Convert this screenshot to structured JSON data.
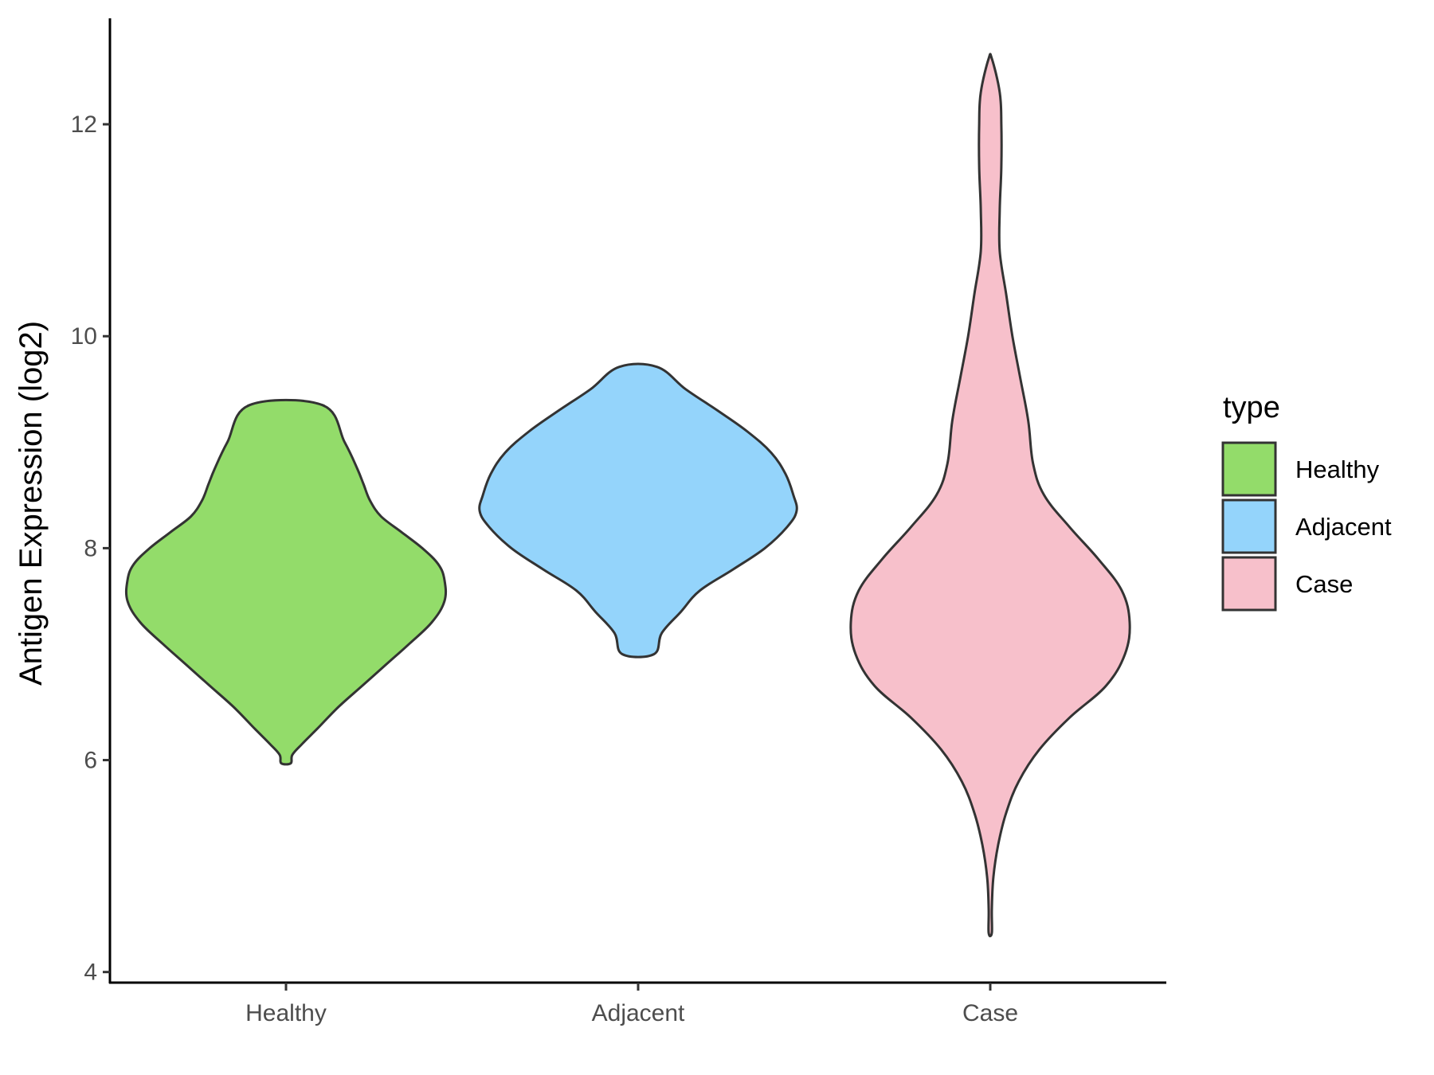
{
  "chart_data": {
    "type": "violin",
    "title": "",
    "xlabel": "",
    "ylabel": "Antigen Expression (log2)",
    "ylim": [
      3.9,
      13.0
    ],
    "yticks": [
      4,
      6,
      8,
      10,
      12
    ],
    "categories": [
      "Healthy",
      "Adjacent",
      "Case"
    ],
    "legend": {
      "title": "type",
      "position": "right",
      "entries": [
        "Healthy",
        "Adjacent",
        "Case"
      ]
    },
    "colors": {
      "Healthy": "#93DC6A",
      "Adjacent": "#94D4FB",
      "Case": "#F7C0CB",
      "outline": "#333333"
    },
    "series": [
      {
        "name": "Healthy",
        "min": 5.97,
        "max": 9.35,
        "profile": [
          [
            9.35,
            0.23
          ],
          [
            9.0,
            0.37
          ],
          [
            8.75,
            0.45
          ],
          [
            8.6,
            0.49
          ],
          [
            8.45,
            0.53
          ],
          [
            8.3,
            0.6
          ],
          [
            8.15,
            0.73
          ],
          [
            8.0,
            0.86
          ],
          [
            7.85,
            0.96
          ],
          [
            7.7,
            1.0
          ],
          [
            7.5,
            1.0
          ],
          [
            7.3,
            0.92
          ],
          [
            7.1,
            0.78
          ],
          [
            6.9,
            0.63
          ],
          [
            6.7,
            0.48
          ],
          [
            6.5,
            0.33
          ],
          [
            6.3,
            0.2
          ],
          [
            6.15,
            0.1
          ],
          [
            6.05,
            0.04
          ],
          [
            5.97,
            0.03
          ]
        ]
      },
      {
        "name": "Adjacent",
        "min": 7.0,
        "max": 9.71,
        "profile": [
          [
            9.71,
            0.12
          ],
          [
            9.5,
            0.3
          ],
          [
            9.3,
            0.5
          ],
          [
            9.1,
            0.69
          ],
          [
            8.9,
            0.84
          ],
          [
            8.7,
            0.93
          ],
          [
            8.5,
            0.98
          ],
          [
            8.35,
            1.0
          ],
          [
            8.2,
            0.94
          ],
          [
            8.0,
            0.8
          ],
          [
            7.8,
            0.6
          ],
          [
            7.6,
            0.39
          ],
          [
            7.4,
            0.27
          ],
          [
            7.2,
            0.15
          ],
          [
            7.0,
            0.1
          ]
        ]
      },
      {
        "name": "Case",
        "min": 4.37,
        "max": 12.62,
        "profile": [
          [
            12.62,
            0.01
          ],
          [
            12.3,
            0.06
          ],
          [
            12.0,
            0.07
          ],
          [
            11.6,
            0.07
          ],
          [
            11.2,
            0.06
          ],
          [
            10.8,
            0.06
          ],
          [
            10.4,
            0.1
          ],
          [
            10.0,
            0.14
          ],
          [
            9.6,
            0.19
          ],
          [
            9.2,
            0.24
          ],
          [
            8.8,
            0.27
          ],
          [
            8.5,
            0.34
          ],
          [
            8.2,
            0.5
          ],
          [
            7.9,
            0.68
          ],
          [
            7.6,
            0.83
          ],
          [
            7.3,
            0.88
          ],
          [
            7.0,
            0.85
          ],
          [
            6.7,
            0.73
          ],
          [
            6.4,
            0.5
          ],
          [
            6.1,
            0.31
          ],
          [
            5.8,
            0.18
          ],
          [
            5.5,
            0.1
          ],
          [
            5.2,
            0.05
          ],
          [
            4.9,
            0.02
          ],
          [
            4.6,
            0.01
          ],
          [
            4.37,
            0.01
          ]
        ]
      }
    ]
  }
}
